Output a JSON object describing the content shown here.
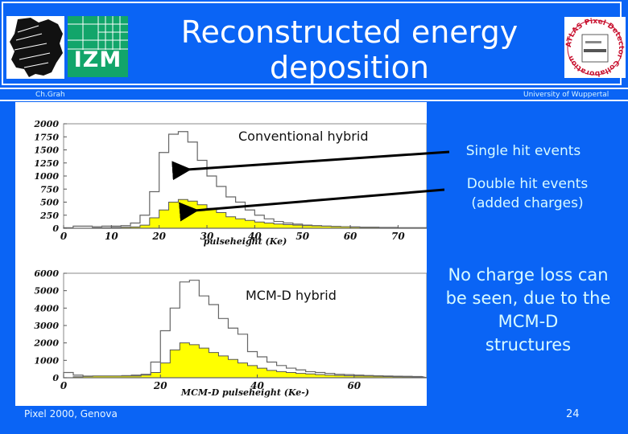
{
  "slide": {
    "title_line1": "Reconstructed energy",
    "title_line2": "deposition",
    "author": "Ch.Grah",
    "institution": "University of Wuppertal",
    "footer_event": "Pixel 2000, Genova",
    "page_number": "24",
    "logos": {
      "left_logo_icon": "nrw-lion-icon",
      "izm_label": "IZM",
      "atlas_logo_text": "ATLAS Pixel Detector Collaboration"
    }
  },
  "annotations": {
    "conventional_label": "Conventional hybrid",
    "mcmd_label": "MCM-D hybrid",
    "single_hit": "Single hit events",
    "double_hit_line1": "Double hit events",
    "double_hit_line2": "(added charges)",
    "conclusion_lines": [
      "No charge loss can",
      "be seen, due to the",
      "MCM-D",
      "structures"
    ]
  },
  "colors": {
    "background": "#0a64f5",
    "panel": "#ffffff",
    "double_fill": "#ffff00",
    "izm_green": "#12a56a",
    "text_light": "#d8fbff"
  },
  "chart_data": [
    {
      "type": "histogram",
      "title": "Conventional hybrid",
      "xlabel": "pulseheight (Ke)",
      "ylabel": "",
      "xlim": [
        0,
        76
      ],
      "ylim": [
        0,
        2000
      ],
      "xticks": [
        0,
        10,
        20,
        30,
        40,
        50,
        60,
        70
      ],
      "yticks": [
        0,
        250,
        500,
        750,
        1000,
        1250,
        1500,
        1750,
        2000
      ],
      "bin_width": 2,
      "x": [
        1,
        3,
        5,
        7,
        9,
        11,
        13,
        15,
        17,
        19,
        21,
        23,
        25,
        27,
        29,
        31,
        33,
        35,
        37,
        39,
        41,
        43,
        45,
        47,
        49,
        51,
        53,
        55,
        57,
        59,
        61,
        63,
        65,
        67,
        69,
        71,
        73,
        75
      ],
      "series": [
        {
          "name": "Single hit events",
          "style": "outline",
          "values": [
            10,
            40,
            40,
            30,
            40,
            40,
            50,
            100,
            250,
            700,
            1450,
            1800,
            1850,
            1650,
            1300,
            1000,
            800,
            600,
            500,
            350,
            250,
            180,
            130,
            100,
            80,
            60,
            50,
            40,
            35,
            30,
            25,
            20,
            20,
            15,
            15,
            10,
            10,
            10
          ]
        },
        {
          "name": "Double hit events (added charges)",
          "style": "filled-yellow",
          "values": [
            0,
            0,
            0,
            10,
            10,
            15,
            20,
            25,
            60,
            200,
            350,
            500,
            550,
            520,
            450,
            380,
            300,
            220,
            180,
            150,
            120,
            100,
            80,
            70,
            60,
            50,
            45,
            40,
            35,
            30,
            25,
            20,
            20,
            15,
            15,
            10,
            10,
            10
          ]
        }
      ]
    },
    {
      "type": "histogram",
      "title": "MCM-D hybrid",
      "xlabel": "MCM-D pulseheight (Ke-)",
      "ylabel": "",
      "xlim": [
        0,
        75
      ],
      "ylim": [
        0,
        6000
      ],
      "xticks": [
        0,
        20,
        40,
        60
      ],
      "yticks": [
        0,
        1000,
        2000,
        3000,
        4000,
        5000,
        6000
      ],
      "bin_width": 2,
      "x": [
        1,
        3,
        5,
        7,
        9,
        11,
        13,
        15,
        17,
        19,
        21,
        23,
        25,
        27,
        29,
        31,
        33,
        35,
        37,
        39,
        41,
        43,
        45,
        47,
        49,
        51,
        53,
        55,
        57,
        59,
        61,
        63,
        65,
        67,
        69,
        71,
        73
      ],
      "series": [
        {
          "name": "Single hit events",
          "style": "outline",
          "values": [
            300,
            150,
            80,
            100,
            100,
            100,
            120,
            150,
            200,
            900,
            2700,
            4000,
            5500,
            5600,
            4700,
            4200,
            3400,
            2850,
            2500,
            1500,
            1200,
            900,
            700,
            550,
            450,
            350,
            300,
            250,
            200,
            180,
            150,
            130,
            110,
            100,
            90,
            80,
            70
          ]
        },
        {
          "name": "Double hit events (added charges)",
          "style": "filled-yellow",
          "values": [
            0,
            50,
            100,
            100,
            100,
            100,
            100,
            100,
            150,
            300,
            850,
            1600,
            2000,
            1900,
            1700,
            1450,
            1250,
            1050,
            850,
            700,
            550,
            420,
            350,
            300,
            250,
            220,
            180,
            150,
            130,
            110,
            100,
            90,
            80,
            70,
            60,
            50,
            40
          ]
        }
      ]
    }
  ]
}
